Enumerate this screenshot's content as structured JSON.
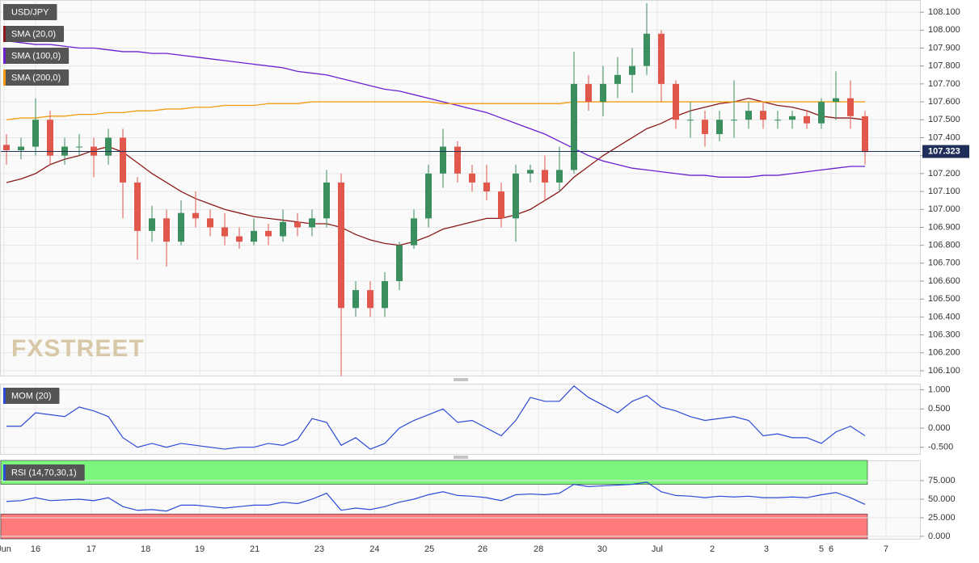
{
  "chart_data": [
    {
      "type": "candlestick",
      "title": "USD/JPY",
      "up_color": "#3b8f5e",
      "down_color": "#e2574c",
      "open": [
        107.36,
        107.33,
        107.35,
        107.5,
        107.3,
        107.35,
        107.35,
        107.3,
        107.4,
        107.15,
        106.88,
        106.95,
        106.82,
        106.98,
        106.95,
        106.9,
        106.85,
        106.82,
        106.88,
        106.85,
        106.93,
        106.9,
        106.95,
        107.15,
        106.45,
        106.55,
        106.45,
        106.6,
        106.8,
        106.95,
        107.2,
        107.35,
        107.2,
        107.15,
        107.1,
        106.95,
        107.2,
        107.22,
        107.15,
        107.22,
        107.7,
        107.6,
        107.7,
        107.75,
        107.8,
        107.98,
        107.7,
        107.5,
        107.5,
        107.42,
        107.5,
        107.5,
        107.55,
        107.5,
        107.5,
        107.52,
        107.48,
        107.6,
        107.62,
        107.52
      ],
      "high": [
        107.42,
        107.4,
        107.62,
        107.55,
        107.4,
        107.42,
        107.4,
        107.45,
        107.45,
        107.18,
        107.02,
        107.0,
        107.05,
        107.1,
        107.0,
        106.98,
        106.9,
        106.95,
        106.92,
        107.0,
        106.98,
        107.0,
        107.22,
        107.2,
        106.6,
        106.6,
        106.65,
        106.82,
        107.0,
        107.25,
        107.45,
        107.38,
        107.25,
        107.25,
        107.15,
        107.25,
        107.25,
        107.3,
        107.35,
        107.88,
        107.75,
        107.8,
        107.85,
        107.9,
        108.15,
        108.0,
        107.72,
        107.6,
        107.55,
        107.55,
        107.72,
        107.6,
        107.6,
        107.55,
        107.55,
        107.55,
        107.62,
        107.77,
        107.72,
        107.55
      ],
      "low": [
        107.25,
        107.28,
        107.3,
        107.25,
        107.25,
        107.3,
        107.18,
        107.25,
        106.95,
        106.72,
        106.82,
        106.68,
        106.8,
        106.9,
        106.85,
        106.8,
        106.78,
        106.8,
        106.8,
        106.82,
        106.85,
        106.85,
        106.9,
        106.07,
        106.4,
        106.4,
        106.4,
        106.55,
        106.78,
        106.9,
        107.12,
        107.15,
        107.1,
        107.05,
        106.9,
        106.82,
        107.15,
        107.05,
        107.1,
        107.2,
        107.55,
        107.52,
        107.62,
        107.65,
        107.75,
        107.6,
        107.45,
        107.4,
        107.35,
        107.38,
        107.4,
        107.45,
        107.45,
        107.45,
        107.45,
        107.45,
        107.45,
        107.5,
        107.45,
        107.25
      ],
      "close": [
        107.33,
        107.35,
        107.5,
        107.3,
        107.35,
        107.35,
        107.3,
        107.4,
        107.15,
        106.88,
        106.95,
        106.82,
        106.98,
        106.95,
        106.9,
        106.85,
        106.82,
        106.88,
        106.85,
        106.93,
        106.9,
        106.95,
        107.15,
        106.45,
        106.55,
        106.45,
        106.6,
        106.8,
        106.95,
        107.2,
        107.35,
        107.2,
        107.15,
        107.1,
        106.95,
        107.2,
        107.22,
        107.15,
        107.22,
        107.7,
        107.6,
        107.7,
        107.75,
        107.8,
        107.98,
        107.7,
        107.5,
        107.5,
        107.42,
        107.5,
        107.5,
        107.55,
        107.5,
        107.5,
        107.52,
        107.48,
        107.6,
        107.62,
        107.52,
        107.32
      ],
      "overlays": [
        {
          "name": "SMA (20,0)",
          "color": "#8b1a1a",
          "values": [
            107.15,
            107.17,
            107.2,
            107.25,
            107.28,
            107.3,
            107.33,
            107.35,
            107.32,
            107.26,
            107.2,
            107.15,
            107.1,
            107.06,
            107.03,
            107.0,
            106.98,
            106.96,
            106.95,
            106.94,
            106.93,
            106.92,
            106.92,
            106.9,
            106.86,
            106.83,
            106.81,
            106.8,
            106.82,
            106.85,
            106.89,
            106.91,
            106.93,
            106.95,
            106.95,
            106.97,
            107.0,
            107.05,
            107.1,
            107.18,
            107.24,
            107.3,
            107.35,
            107.4,
            107.45,
            107.48,
            107.52,
            107.55,
            107.57,
            107.59,
            107.6,
            107.62,
            107.6,
            107.58,
            107.57,
            107.55,
            107.52,
            107.51,
            107.51,
            107.5
          ]
        },
        {
          "name": "SMA (100,0)",
          "color": "#6a1fd1",
          "values": [
            107.94,
            107.93,
            107.92,
            107.92,
            107.91,
            107.9,
            107.9,
            107.89,
            107.88,
            107.88,
            107.87,
            107.87,
            107.86,
            107.85,
            107.84,
            107.83,
            107.82,
            107.81,
            107.8,
            107.79,
            107.77,
            107.76,
            107.75,
            107.73,
            107.71,
            107.69,
            107.67,
            107.66,
            107.64,
            107.62,
            107.6,
            107.58,
            107.56,
            107.54,
            107.51,
            107.48,
            107.45,
            107.42,
            107.38,
            107.34,
            107.3,
            107.27,
            107.25,
            107.23,
            107.22,
            107.21,
            107.2,
            107.19,
            107.19,
            107.18,
            107.18,
            107.18,
            107.19,
            107.19,
            107.2,
            107.21,
            107.22,
            107.23,
            107.24,
            107.24
          ]
        },
        {
          "name": "SMA (200,0)",
          "color": "#f39c12",
          "values": [
            107.5,
            107.51,
            107.51,
            107.52,
            107.52,
            107.53,
            107.53,
            107.54,
            107.54,
            107.55,
            107.55,
            107.56,
            107.56,
            107.57,
            107.57,
            107.58,
            107.58,
            107.58,
            107.59,
            107.59,
            107.59,
            107.6,
            107.6,
            107.6,
            107.6,
            107.6,
            107.6,
            107.6,
            107.6,
            107.6,
            107.59,
            107.59,
            107.59,
            107.59,
            107.59,
            107.59,
            107.59,
            107.59,
            107.59,
            107.6,
            107.6,
            107.6,
            107.6,
            107.6,
            107.6,
            107.6,
            107.6,
            107.6,
            107.6,
            107.6,
            107.6,
            107.6,
            107.6,
            107.6,
            107.6,
            107.6,
            107.6,
            107.6,
            107.6,
            107.6
          ]
        }
      ],
      "last_price": 107.323,
      "last_price_color": "#1f2f5a",
      "watermark": "FXSTREET",
      "ylim": [
        106.073,
        108.168
      ],
      "yticks": [
        {
          "value": 106.1,
          "label": "106.100"
        },
        {
          "value": 106.2,
          "label": "106.200"
        },
        {
          "value": 106.3,
          "label": "106.300"
        },
        {
          "value": 106.4,
          "label": "106.400"
        },
        {
          "value": 106.5,
          "label": "106.500"
        },
        {
          "value": 106.6,
          "label": "106.600"
        },
        {
          "value": 106.7,
          "label": "106.700"
        },
        {
          "value": 106.8,
          "label": "106.800"
        },
        {
          "value": 106.9,
          "label": "106.900"
        },
        {
          "value": 107.0,
          "label": "107.000"
        },
        {
          "value": 107.1,
          "label": "107.100"
        },
        {
          "value": 107.2,
          "label": "107.200"
        },
        {
          "value": 107.3,
          "label": "107.300"
        },
        {
          "value": 107.4,
          "label": "107.400"
        },
        {
          "value": 107.5,
          "label": "107.500"
        },
        {
          "value": 107.6,
          "label": "107.600"
        },
        {
          "value": 107.7,
          "label": "107.700"
        },
        {
          "value": 107.8,
          "label": "107.800"
        },
        {
          "value": 107.9,
          "label": "107.900"
        },
        {
          "value": 108.0,
          "label": "108.000"
        },
        {
          "value": 108.1,
          "label": "108.100"
        }
      ],
      "grid": true
    },
    {
      "type": "line",
      "title": "MOM (20)",
      "color": "#2b4bd6",
      "values": [
        0.05,
        0.05,
        0.4,
        0.35,
        0.3,
        0.55,
        0.45,
        0.3,
        -0.25,
        -0.5,
        -0.4,
        -0.5,
        -0.4,
        -0.45,
        -0.5,
        -0.55,
        -0.5,
        -0.5,
        -0.4,
        -0.45,
        -0.3,
        0.25,
        0.15,
        -0.45,
        -0.25,
        -0.55,
        -0.4,
        0.0,
        0.2,
        0.35,
        0.5,
        0.15,
        0.2,
        0.0,
        -0.2,
        0.2,
        0.8,
        0.7,
        0.7,
        1.1,
        0.8,
        0.6,
        0.4,
        0.7,
        0.85,
        0.55,
        0.45,
        0.3,
        0.2,
        0.25,
        0.3,
        0.2,
        -0.2,
        -0.15,
        -0.25,
        -0.25,
        -0.4,
        -0.1,
        0.05,
        -0.2
      ],
      "ylim": [
        -0.675,
        1.16
      ],
      "yticks": [
        {
          "value": 1,
          "label": "1.000"
        },
        {
          "value": 0.5,
          "label": "0.500"
        },
        {
          "value": 0,
          "label": "0.000"
        },
        {
          "value": -0.5,
          "label": "-0.500"
        }
      ],
      "grid": true
    },
    {
      "type": "line",
      "title": "RSI (14,70,30,1)",
      "color": "#2b4bd6",
      "values": [
        47,
        48,
        52,
        48,
        49,
        50,
        48,
        52,
        40,
        35,
        36,
        34,
        42,
        42,
        40,
        38,
        40,
        42,
        42,
        46,
        44,
        50,
        58,
        35,
        38,
        36,
        40,
        46,
        50,
        56,
        60,
        55,
        54,
        52,
        48,
        56,
        57,
        56,
        58,
        70,
        67,
        68,
        69,
        70,
        73,
        60,
        55,
        54,
        52,
        54,
        53,
        54,
        52,
        52,
        53,
        52,
        56,
        59,
        52,
        43
      ],
      "overbought": 70,
      "oversold": 30,
      "overbought_color": "#7cf57c",
      "oversold_color": "#ff7a7a",
      "ylim": [
        -3.3,
        102.2
      ],
      "yticks": [
        {
          "value": 75,
          "label": "75.000"
        },
        {
          "value": 50,
          "label": "50.000"
        },
        {
          "value": 25,
          "label": "25.000"
        },
        {
          "value": 0,
          "label": "0.000"
        }
      ],
      "xticks": [
        {
          "value": -0.17,
          "label": "Jun"
        },
        {
          "value": 2.0,
          "label": "16"
        },
        {
          "value": 5.83,
          "label": "17"
        },
        {
          "value": 9.56,
          "label": "18"
        },
        {
          "value": 13.28,
          "label": "19"
        },
        {
          "value": 17.06,
          "label": "21"
        },
        {
          "value": 21.5,
          "label": "23"
        },
        {
          "value": 25.3,
          "label": "24"
        },
        {
          "value": 29.06,
          "label": "25"
        },
        {
          "value": 32.72,
          "label": "26"
        },
        {
          "value": 36.56,
          "label": "28"
        },
        {
          "value": 40.94,
          "label": "30"
        },
        {
          "value": 44.72,
          "label": "Jul"
        },
        {
          "value": 48.5,
          "label": "2"
        },
        {
          "value": 52.22,
          "label": "3"
        },
        {
          "value": 56.0,
          "label": "5"
        },
        {
          "value": 56.67,
          "label": "6"
        },
        {
          "value": 60.44,
          "label": "7"
        }
      ],
      "grid": true
    }
  ]
}
